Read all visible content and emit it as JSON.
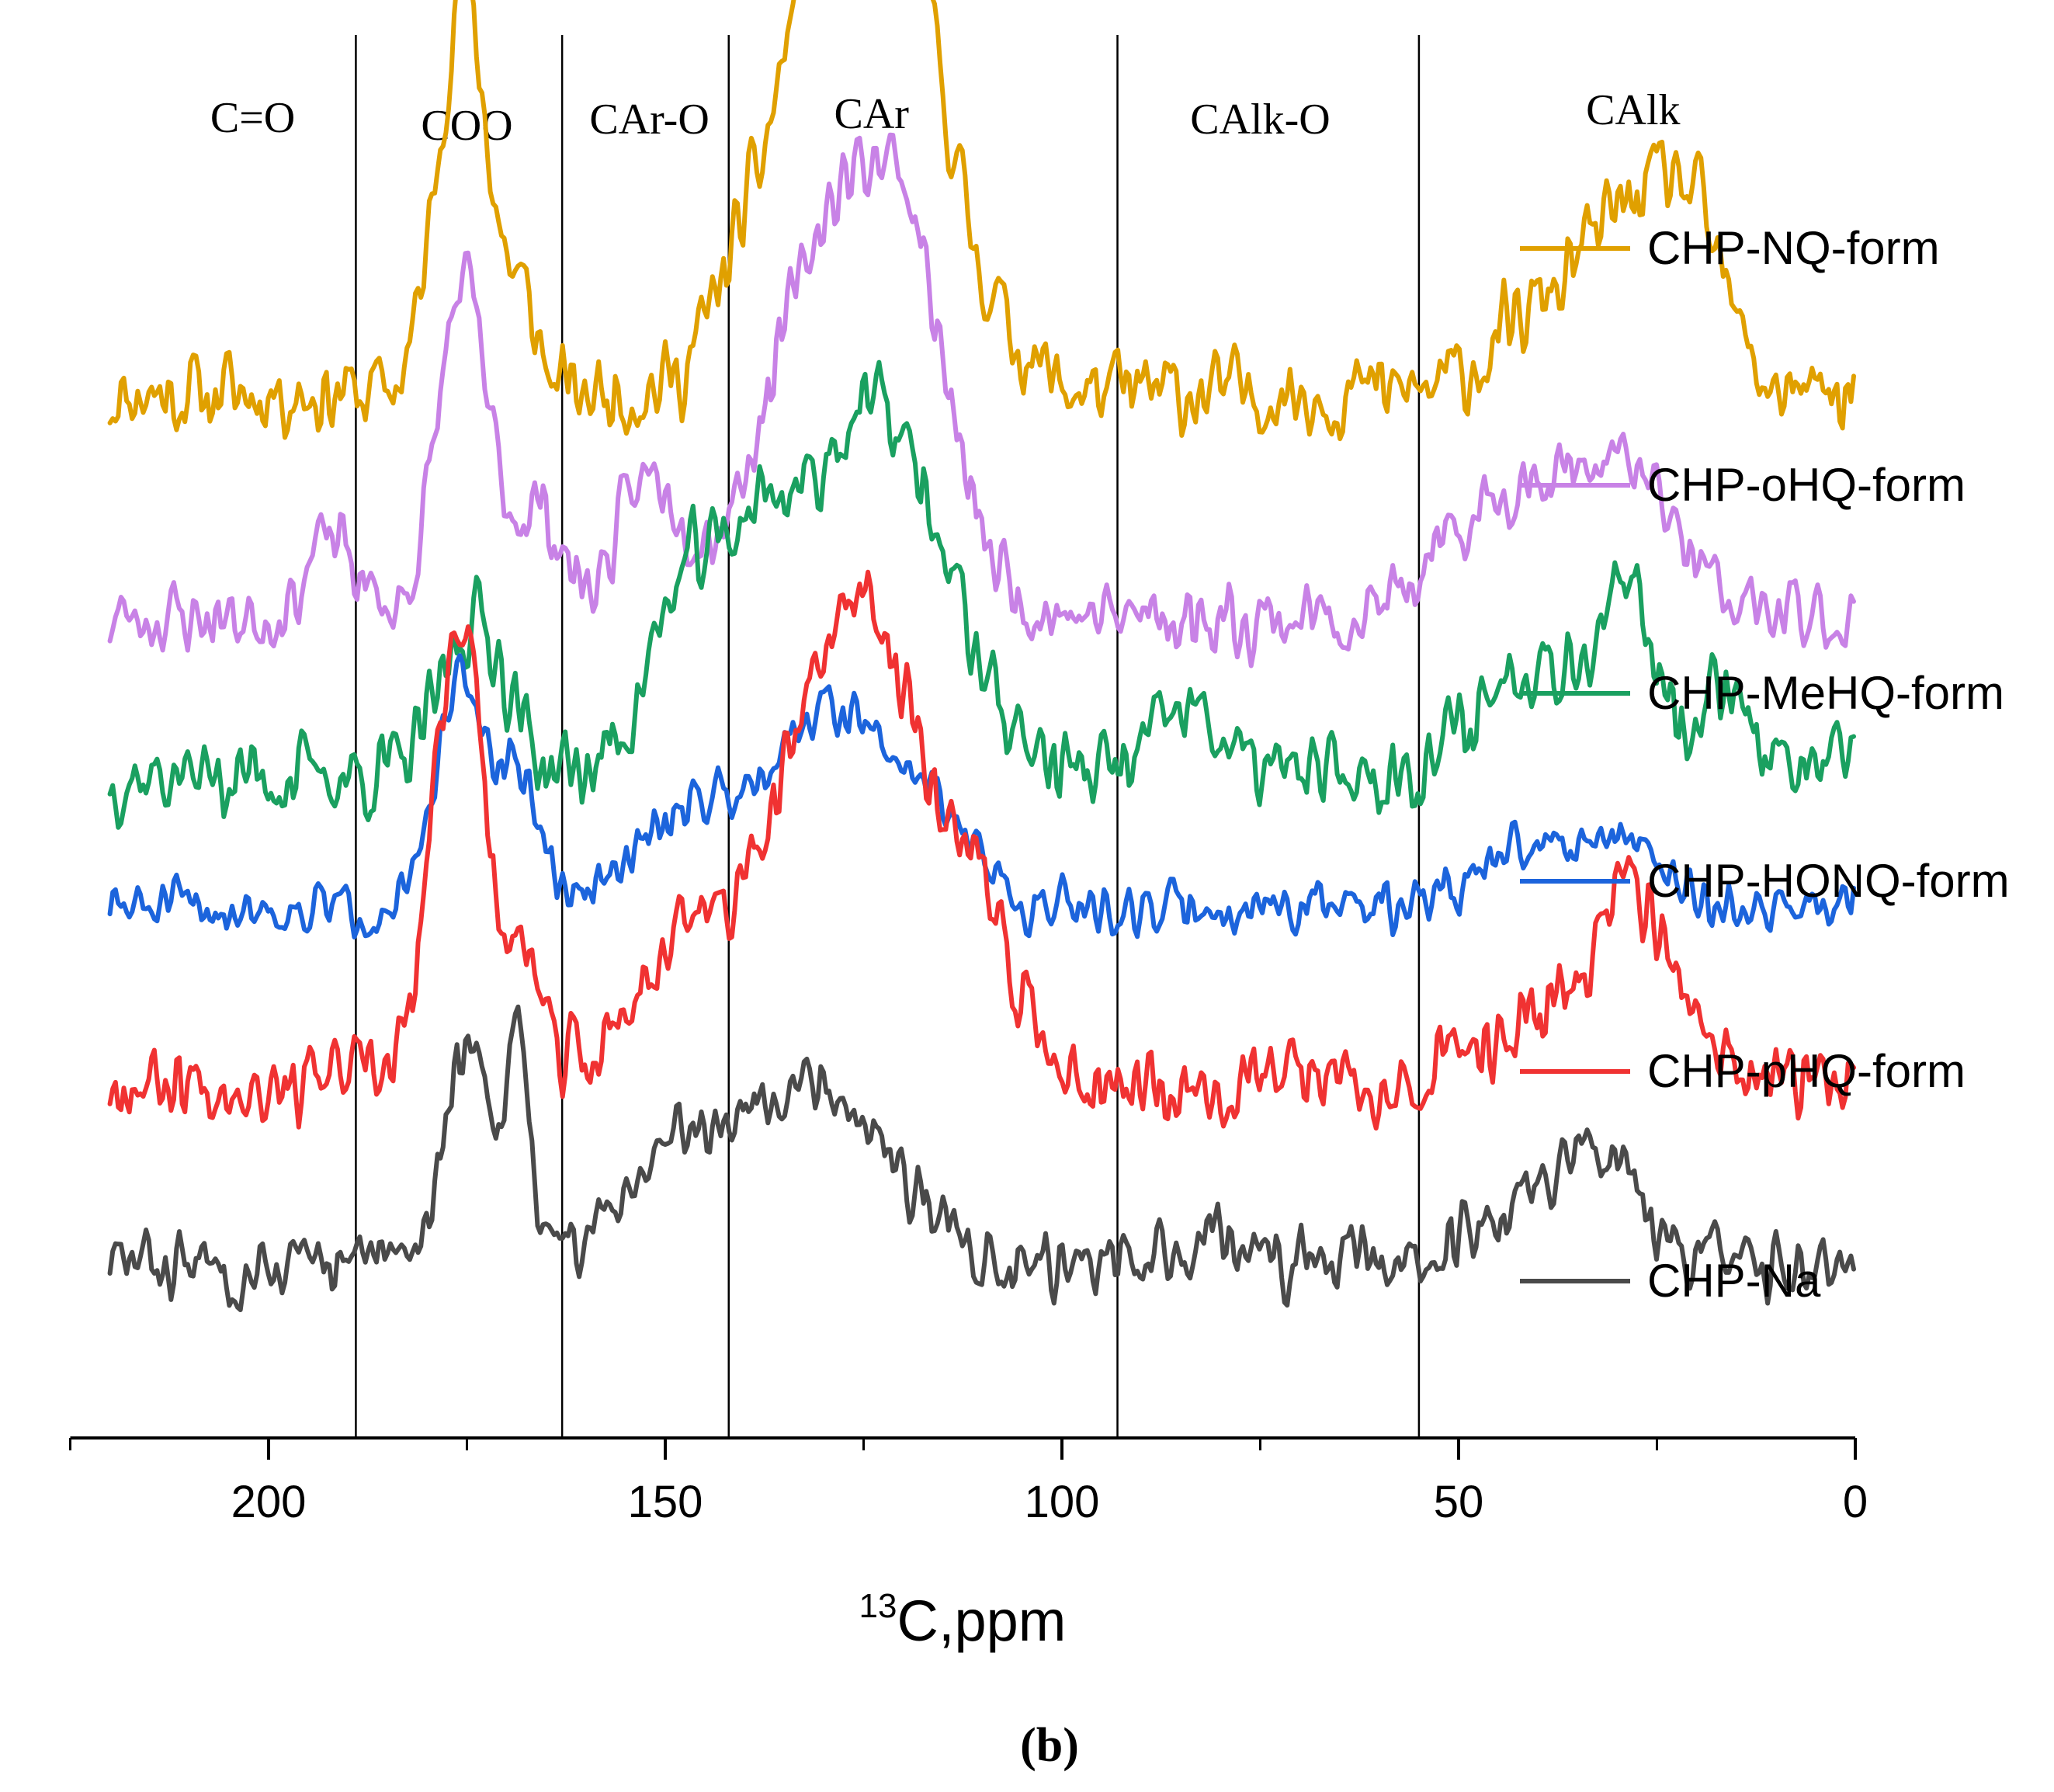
{
  "chart_data": {
    "type": "line",
    "title": "",
    "xlabel_prefix": "13",
    "xlabel_main": "C,ppm",
    "ylabel": "",
    "xlim": [
      225,
      0
    ],
    "x_reversed": true,
    "xticks": [
      200,
      150,
      100,
      50,
      0
    ],
    "grid": false,
    "legend_position": "right",
    "caption": "(b)",
    "region_boundaries": [
      189,
      163,
      142,
      93,
      55
    ],
    "regions": [
      {
        "label": "C=O",
        "center": 202
      },
      {
        "label": "COO",
        "center": 175
      },
      {
        "label": "CAr-O",
        "center": 152
      },
      {
        "label": "CAr",
        "center": 124
      },
      {
        "label": "CAlk-O",
        "center": 75
      },
      {
        "label": "CAlk",
        "center": 28
      }
    ],
    "series": [
      {
        "name": "CHP-NQ-form",
        "color": "#E0A000",
        "baseline": 0.82,
        "peaks": [
          [
            175.5,
            0.3,
            3.2
          ],
          [
            168,
            0.06,
            2
          ],
          [
            142,
            0.03,
            3
          ],
          [
            127,
            0.42,
            8
          ],
          [
            119,
            0.12,
            4
          ],
          [
            110,
            0.04,
            5
          ],
          [
            28,
            0.13,
            6
          ],
          [
            20,
            0.09,
            4
          ],
          [
            40,
            0.05,
            6
          ]
        ],
        "noise": 0.025,
        "seed": 11
      },
      {
        "name": "CHP-oHQ-form",
        "color": "#C882E6",
        "baseline": 0.65,
        "peaks": [
          [
            192,
            0.06,
            3
          ],
          [
            175.5,
            0.25,
            3.2
          ],
          [
            166,
            0.08,
            3
          ],
          [
            152,
            0.1,
            4
          ],
          [
            127,
            0.32,
            9
          ],
          [
            119,
            0.1,
            4
          ],
          [
            42,
            0.1,
            8
          ],
          [
            28,
            0.09,
            6
          ]
        ],
        "noise": 0.022,
        "seed": 23
      },
      {
        "name": "CHP-MeHQ-form",
        "color": "#1AA060",
        "baseline": 0.53,
        "peaks": [
          [
            174,
            0.12,
            4
          ],
          [
            147,
            0.14,
            5
          ],
          [
            138,
            0.1,
            4
          ],
          [
            124,
            0.28,
            9
          ],
          [
            84,
            0.05,
            4
          ],
          [
            40,
            0.09,
            7
          ],
          [
            28,
            0.11,
            4
          ],
          [
            16,
            0.07,
            3
          ]
        ],
        "noise": 0.025,
        "seed": 37
      },
      {
        "name": "CHP-HONQ-form",
        "color": "#1C64DC",
        "baseline": 0.43,
        "peaks": [
          [
            175.5,
            0.17,
            3.2
          ],
          [
            168,
            0.09,
            2.5
          ],
          [
            148,
            0.06,
            6
          ],
          [
            129,
            0.15,
            9
          ],
          [
            115,
            0.04,
            4
          ],
          [
            38,
            0.05,
            8
          ],
          [
            28,
            0.03,
            4
          ]
        ],
        "noise": 0.016,
        "seed": 51
      },
      {
        "name": "CHP-pHQ-form",
        "color": "#F03232",
        "baseline": 0.3,
        "peaks": [
          [
            176,
            0.35,
            3.2
          ],
          [
            168,
            0.08,
            2.5
          ],
          [
            148,
            0.1,
            6
          ],
          [
            126,
            0.36,
            9
          ],
          [
            110,
            0.07,
            5
          ],
          [
            40,
            0.04,
            8
          ],
          [
            28,
            0.13,
            5
          ]
        ],
        "noise": 0.024,
        "seed": 67
      },
      {
        "name": "CHP-Na",
        "color": "#4A4A4A",
        "baseline": 0.16,
        "peaks": [
          [
            175,
            0.16,
            3
          ],
          [
            168.5,
            0.18,
            1.4
          ],
          [
            150,
            0.07,
            6
          ],
          [
            132,
            0.14,
            10
          ],
          [
            80,
            0.03,
            3
          ],
          [
            40,
            0.05,
            7
          ],
          [
            32,
            0.07,
            4
          ]
        ],
        "noise": 0.02,
        "seed": 83
      }
    ]
  }
}
